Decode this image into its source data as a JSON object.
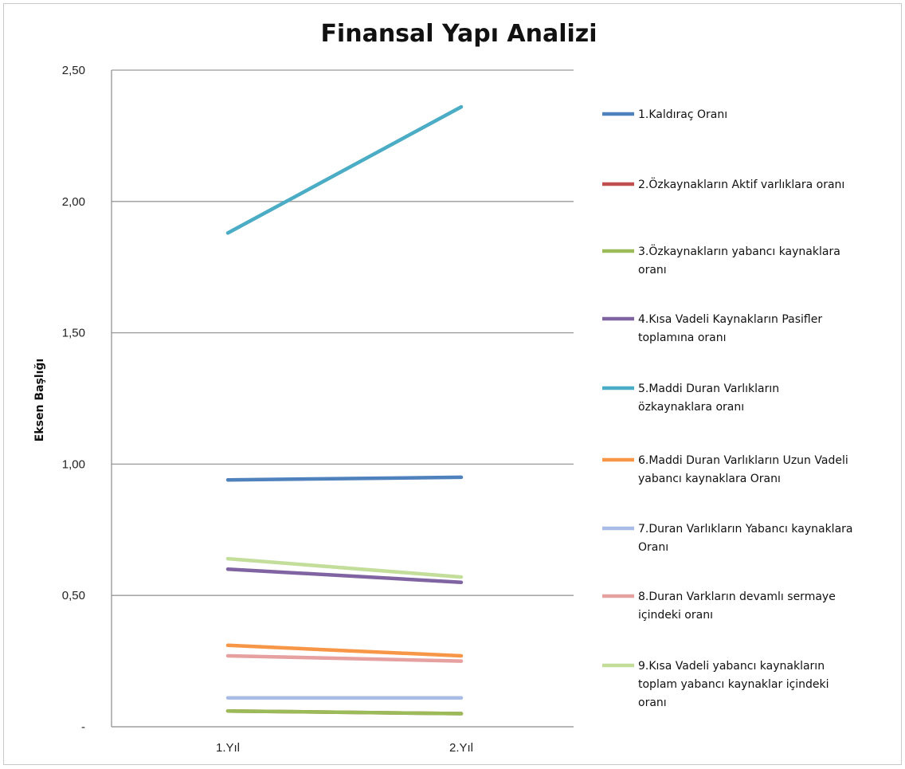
{
  "chart_data": {
    "type": "line",
    "title": "Finansal Yapı Analizi",
    "ylabel": "Eksen Başlığı",
    "xlabel": "",
    "categories": [
      "1.Yıl",
      "2.Yıl"
    ],
    "ylim": [
      0,
      2.5
    ],
    "y_ticks": [
      {
        "value": 0,
        "label": "-"
      },
      {
        "value": 0.5,
        "label": "0,50"
      },
      {
        "value": 1.0,
        "label": "1,00"
      },
      {
        "value": 1.5,
        "label": "1,50"
      },
      {
        "value": 2.0,
        "label": "2,00"
      },
      {
        "value": 2.5,
        "label": "2,50"
      }
    ],
    "grid": true,
    "legend_position": "right",
    "series": [
      {
        "name": "1.Kaldıraç Oranı",
        "color": "#4f81bd",
        "values": [
          0.94,
          0.95
        ],
        "legend_lines": [
          "1.Kaldıraç Oranı"
        ]
      },
      {
        "name": "2.Özkaynakların Aktif varlıklara oranı",
        "color": "#c0504d",
        "values": [
          0.06,
          0.05
        ],
        "legend_lines": [
          "2.Özkaynakların Aktif varlıklara oranı"
        ]
      },
      {
        "name": "3.Özkaynakların yabancı kaynaklara oranı",
        "color": "#9bbb59",
        "values": [
          0.06,
          0.05
        ],
        "legend_lines": [
          "3.Özkaynakların yabancı kaynaklara",
          "oranı"
        ]
      },
      {
        "name": "4.Kısa Vadeli Kaynakların Pasifler toplamına oranı",
        "color": "#8064a2",
        "values": [
          0.6,
          0.55
        ],
        "legend_lines": [
          "4.Kısa Vadeli Kaynakların Pasifler",
          "toplamına oranı"
        ]
      },
      {
        "name": "5.Maddi Duran Varlıkların özkaynaklara oranı",
        "color": "#4bacc6",
        "values": [
          1.88,
          2.36
        ],
        "legend_lines": [
          "5.Maddi Duran Varlıkların",
          "özkaynaklara oranı"
        ]
      },
      {
        "name": "6.Maddi Duran Varlıkların Uzun Vadeli yabancı kaynaklara Oranı",
        "color": "#f79646",
        "values": [
          0.31,
          0.27
        ],
        "legend_lines": [
          "6.Maddi Duran Varlıkların Uzun Vadeli",
          "yabancı kaynaklara Oranı"
        ]
      },
      {
        "name": "7.Duran Varlıkların Yabancı kaynaklara Oranı",
        "color": "#a9bce6",
        "values": [
          0.11,
          0.11
        ],
        "legend_lines": [
          "7.Duran Varlıkların Yabancı kaynaklara",
          "Oranı"
        ]
      },
      {
        "name": "8.Duran Varkların devamlı sermaye içindeki oranı",
        "color": "#e6a0a0",
        "values": [
          0.27,
          0.25
        ],
        "legend_lines": [
          "8.Duran Varkların devamlı sermaye",
          "içindeki oranı"
        ]
      },
      {
        "name": "9.Kısa Vadeli yabancı kaynakların toplam yabancı kaynaklar içindeki oranı",
        "color": "#c3dd9a",
        "values": [
          0.64,
          0.57
        ],
        "legend_lines": [
          "9.Kısa Vadeli yabancı kaynakların",
          "toplam yabancı kaynaklar içindeki",
          "oranı"
        ]
      }
    ]
  }
}
